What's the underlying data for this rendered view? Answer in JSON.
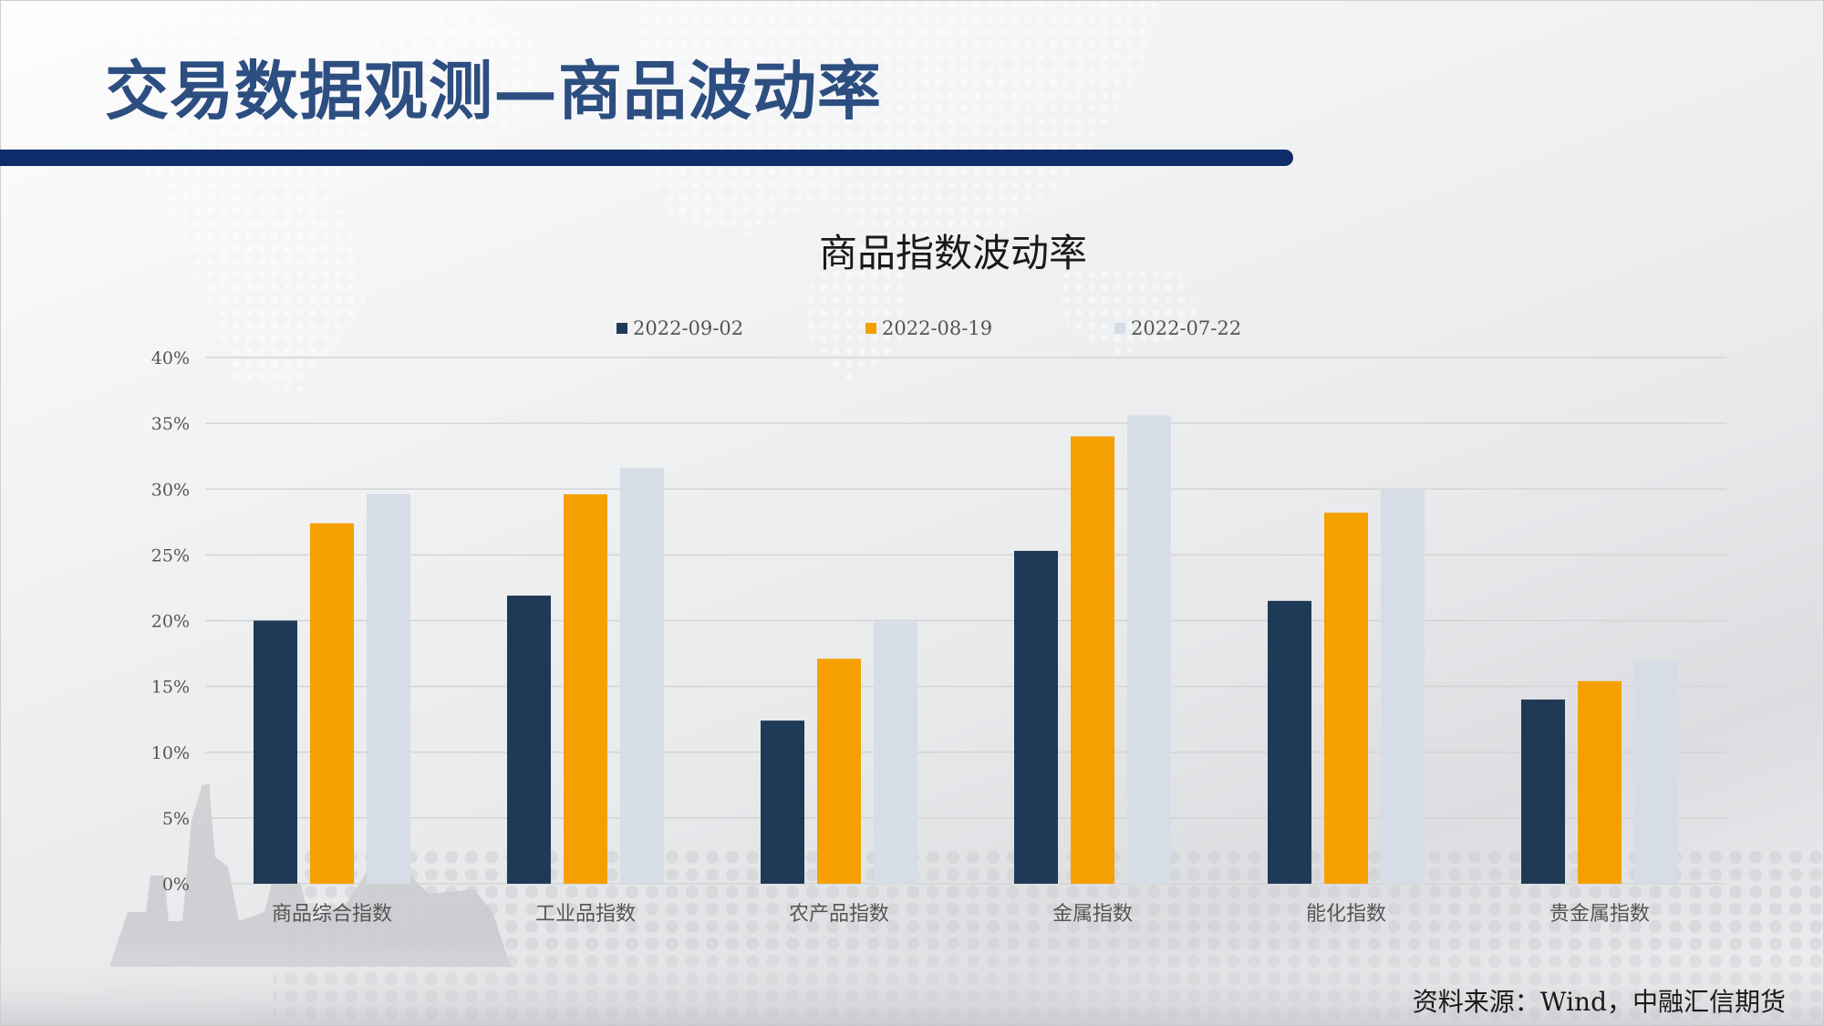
{
  "slide": {
    "title": "交易数据观测—商品波动率",
    "source": "资料来源：Wind，中融汇信期货"
  },
  "colors": {
    "title": "#2d4e80",
    "rule": "#0f2d6b"
  },
  "chart_data": {
    "type": "bar",
    "title": "商品指数波动率",
    "categories": [
      "商品综合指数",
      "工业品指数",
      "农产品指数",
      "金属指数",
      "能化指数",
      "贵金属指数"
    ],
    "series": [
      {
        "name": "2022-09-02",
        "color": "#1f3a56",
        "values": [
          20.0,
          21.9,
          12.4,
          25.3,
          21.5,
          14.0
        ]
      },
      {
        "name": "2022-08-19",
        "color": "#f5a000",
        "values": [
          27.4,
          29.6,
          17.1,
          34.0,
          28.2,
          15.4
        ]
      },
      {
        "name": "2022-07-22",
        "color": "#d6dde6",
        "values": [
          29.6,
          31.6,
          19.9,
          35.6,
          30.0,
          16.9
        ]
      }
    ],
    "ylim": [
      0,
      40
    ],
    "yticks": [
      "0%",
      "5%",
      "10%",
      "15%",
      "20%",
      "25%",
      "30%",
      "35%",
      "40%"
    ],
    "ytick_values": [
      0,
      5,
      10,
      15,
      20,
      25,
      30,
      35,
      40
    ],
    "xlabel": "",
    "ylabel": "",
    "grid": true,
    "legend": "top"
  }
}
